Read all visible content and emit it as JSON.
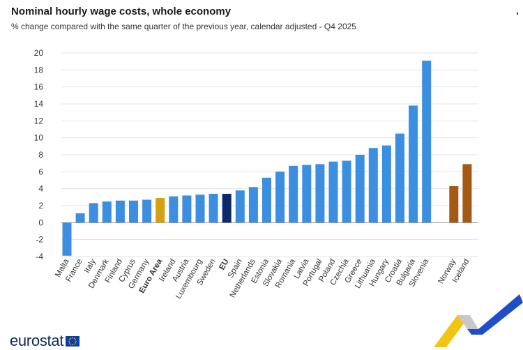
{
  "header": {
    "title": "Nominal hourly wage costs, whole economy",
    "subtitle": "% change compared with the same quarter of the previous year, calendar adjusted - Q4 2025"
  },
  "top_icon": "◖",
  "footer": {
    "logo_text": "eurostat",
    "flag_icon": "eu-flag-icon"
  },
  "colors": {
    "country": "#3b8ee0",
    "euro_area": "#d4a20e",
    "eu": "#0b2a6b",
    "efta": "#a45a14",
    "grid": "#e3e3e3",
    "axis_text": "#333333"
  },
  "chart_data": {
    "type": "bar",
    "title": "Nominal hourly wage costs, whole economy",
    "subtitle": "% change compared with the same quarter of the previous year, calendar adjusted - Q4 2025",
    "ylim": [
      -4,
      20
    ],
    "yticks": [
      -4,
      -2,
      0,
      2,
      4,
      6,
      8,
      10,
      12,
      14,
      16,
      18,
      20
    ],
    "grid": true,
    "categories": [
      "Malta",
      "France",
      "Italy",
      "Denmark",
      "Finland",
      "Cyprus",
      "Germany",
      "Euro Area",
      "Ireland",
      "Austria",
      "Luxembourg",
      "Sweden",
      "EU",
      "Spain",
      "Netherlands",
      "Estonia",
      "Slovakia",
      "Romania",
      "Latvia",
      "Portugal",
      "Poland",
      "Czechia",
      "Greece",
      "Lithuania",
      "Hungary",
      "Croatia",
      "Bulgaria",
      "Slovenia",
      "Norway",
      "Iceland"
    ],
    "values": [
      -3.9,
      1.1,
      2.3,
      2.5,
      2.6,
      2.6,
      2.7,
      2.9,
      3.1,
      3.2,
      3.3,
      3.4,
      3.4,
      3.8,
      4.2,
      5.3,
      6.0,
      6.7,
      6.8,
      6.9,
      7.2,
      7.3,
      8.0,
      8.8,
      9.1,
      10.5,
      13.8,
      19.1,
      4.3,
      6.9
    ],
    "groups": [
      "country",
      "country",
      "country",
      "country",
      "country",
      "country",
      "country",
      "euro_area",
      "country",
      "country",
      "country",
      "country",
      "eu",
      "country",
      "country",
      "country",
      "country",
      "country",
      "country",
      "country",
      "country",
      "country",
      "country",
      "country",
      "country",
      "country",
      "country",
      "country",
      "efta",
      "efta"
    ],
    "bold_labels": [
      "Euro Area",
      "EU"
    ]
  }
}
